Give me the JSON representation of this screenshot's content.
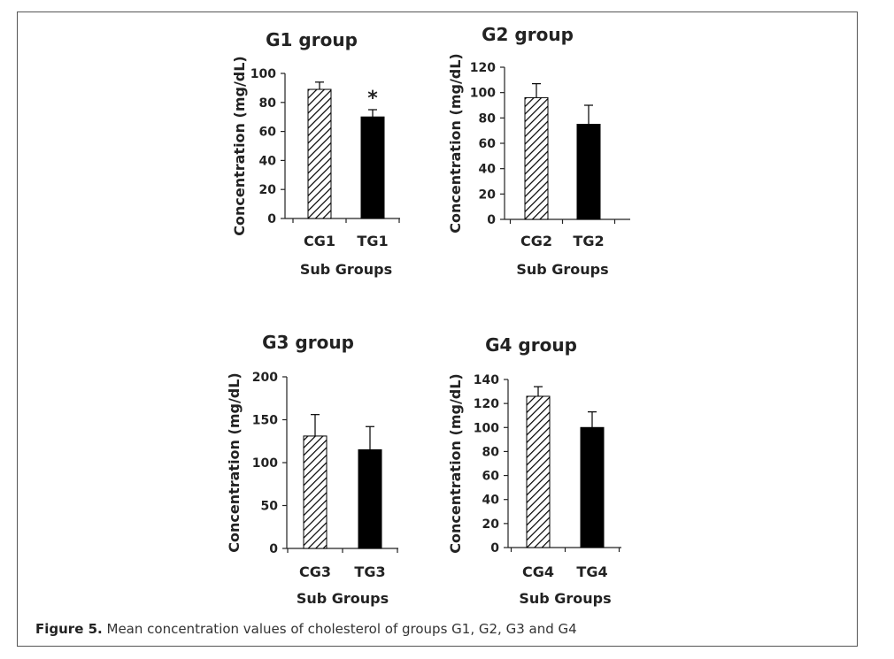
{
  "figure": {
    "label": "Figure 5.",
    "caption": "Mean concentration values of cholesterol of groups G1, G2, G3 and G4"
  },
  "colors": {
    "control": "#ffffff",
    "treated": "#000000",
    "hatch": "#000000",
    "axis": "#222222"
  },
  "chart_data": [
    {
      "type": "bar",
      "title": "G1 group",
      "xlabel": "Sub Groups",
      "ylabel": "Concentration (mg/dL)",
      "categories": [
        "CG1",
        "TG1"
      ],
      "values": [
        89,
        70
      ],
      "errors": [
        5,
        5
      ],
      "patterns": [
        "hatched",
        "solid"
      ],
      "annotations": [
        "",
        "*"
      ],
      "ylim": [
        0,
        100
      ],
      "yticks": [
        0,
        20,
        40,
        60,
        80,
        100
      ]
    },
    {
      "type": "bar",
      "title": "G2 group",
      "xlabel": "Sub Groups",
      "ylabel": "Concentration (mg/dL)",
      "categories": [
        "CG2",
        "TG2"
      ],
      "values": [
        96,
        75
      ],
      "errors": [
        11,
        15
      ],
      "patterns": [
        "hatched",
        "solid"
      ],
      "annotations": [
        "",
        ""
      ],
      "ylim": [
        0,
        120
      ],
      "yticks": [
        0,
        20,
        40,
        60,
        80,
        100,
        120
      ]
    },
    {
      "type": "bar",
      "title": "G3 group",
      "xlabel": "Sub Groups",
      "ylabel": "Concentration (mg/dL)",
      "categories": [
        "CG3",
        "TG3"
      ],
      "values": [
        131,
        115
      ],
      "errors": [
        25,
        27
      ],
      "patterns": [
        "hatched",
        "solid"
      ],
      "annotations": [
        "",
        ""
      ],
      "ylim": [
        0,
        200
      ],
      "yticks": [
        0,
        50,
        100,
        150,
        200
      ]
    },
    {
      "type": "bar",
      "title": "G4 group",
      "xlabel": "Sub Groups",
      "ylabel": "Concentration (mg/dL)",
      "categories": [
        "CG4",
        "TG4"
      ],
      "values": [
        126,
        100
      ],
      "errors": [
        8,
        13
      ],
      "patterns": [
        "hatched",
        "solid"
      ],
      "annotations": [
        "",
        ""
      ],
      "ylim": [
        0,
        140
      ],
      "yticks": [
        0,
        20,
        40,
        60,
        80,
        100,
        120,
        140
      ]
    }
  ]
}
